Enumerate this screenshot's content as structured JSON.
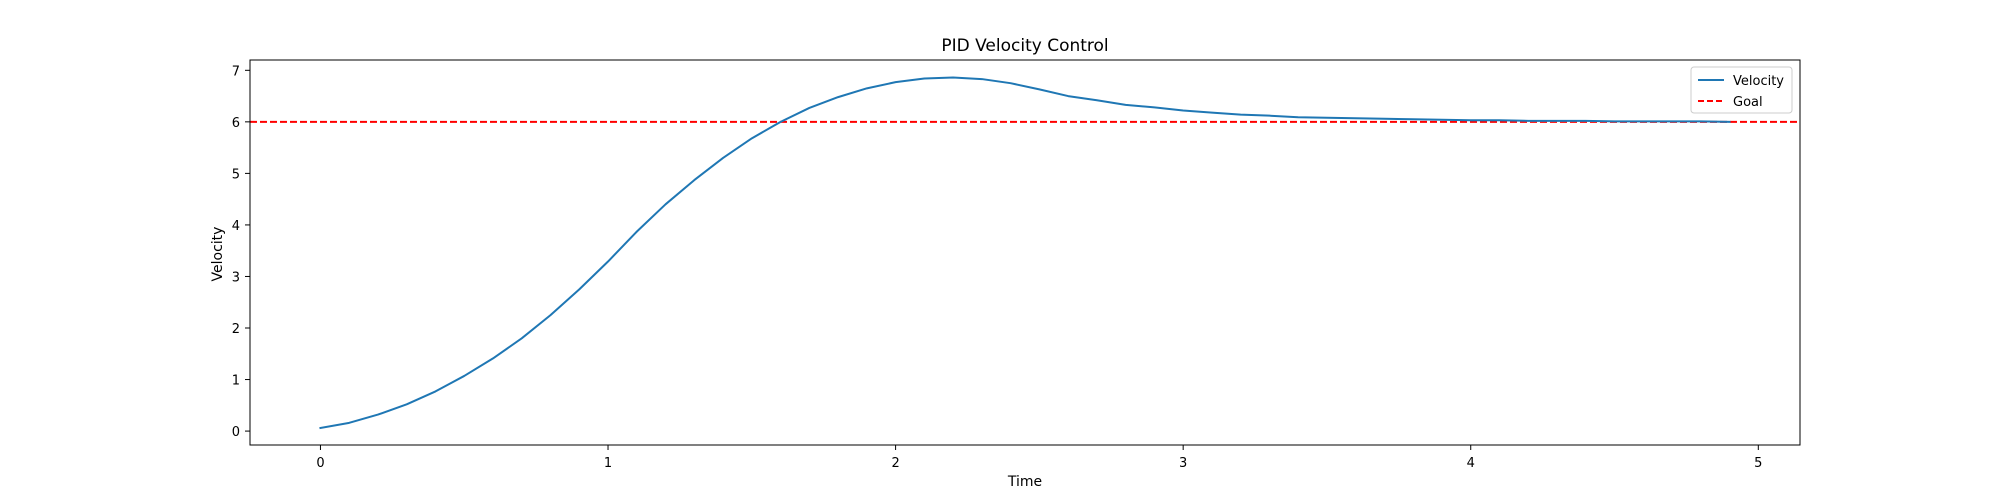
{
  "chart_data": {
    "type": "line",
    "title": "PID Velocity Control",
    "xlabel": "Time",
    "ylabel": "Velocity",
    "xlim": [
      -0.245,
      5.145
    ],
    "ylim": [
      -0.27,
      7.2
    ],
    "xticks": [
      0,
      1,
      2,
      3,
      4,
      5
    ],
    "yticks": [
      0,
      1,
      2,
      3,
      4,
      5,
      6,
      7
    ],
    "grid": false,
    "legend_position": "top-right",
    "x": [
      0.0,
      0.1,
      0.2,
      0.3,
      0.4,
      0.5,
      0.6,
      0.7,
      0.8,
      0.9,
      1.0,
      1.1,
      1.2,
      1.3,
      1.4,
      1.5,
      1.6,
      1.7,
      1.8,
      1.9,
      2.0,
      2.1,
      2.2,
      2.3,
      2.4,
      2.5,
      2.6,
      2.7,
      2.8,
      2.9,
      3.0,
      3.1,
      3.2,
      3.3,
      3.4,
      3.5,
      3.6,
      3.7,
      3.8,
      3.9,
      4.0,
      4.1,
      4.2,
      4.3,
      4.4,
      4.5,
      4.6,
      4.7,
      4.8,
      4.9
    ],
    "series": [
      {
        "name": "Velocity",
        "color": "#1f77b4",
        "style": "solid",
        "values": [
          0.06,
          0.16,
          0.32,
          0.52,
          0.77,
          1.07,
          1.41,
          1.8,
          2.25,
          2.75,
          3.29,
          3.87,
          4.4,
          4.87,
          5.3,
          5.68,
          6.0,
          6.27,
          6.48,
          6.65,
          6.77,
          6.84,
          6.86,
          6.83,
          6.75,
          6.63,
          6.5,
          6.42,
          6.33,
          6.28,
          6.22,
          6.18,
          6.14,
          6.12,
          6.09,
          6.08,
          6.07,
          6.06,
          6.05,
          6.04,
          6.03,
          6.03,
          6.02,
          6.02,
          6.02,
          6.01,
          6.01,
          6.01,
          6.01,
          6.0
        ]
      }
    ],
    "reference_lines": [
      {
        "name": "Goal",
        "y": 6,
        "color": "#ff0000",
        "style": "dashed"
      }
    ]
  }
}
